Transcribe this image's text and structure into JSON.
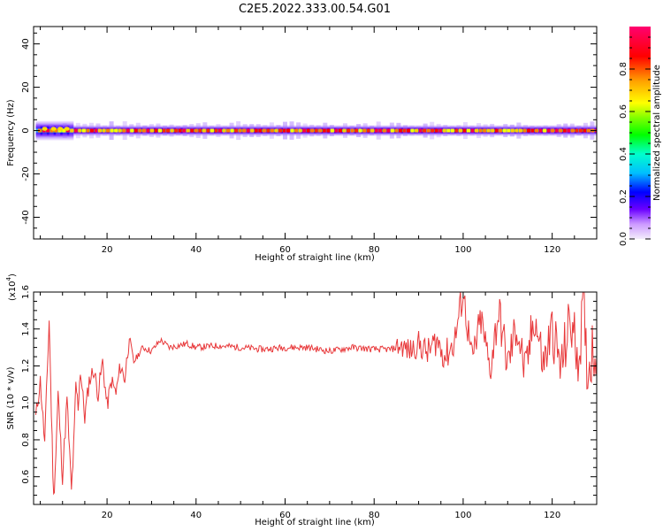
{
  "title": "C2E5.2022.333.00.54.G01",
  "colors": {
    "snr_line": "#e8383a",
    "axis": "#000000",
    "colorbar_stops": [
      "#f0e6fa",
      "#cc99ff",
      "#6a00ff",
      "#0000ff",
      "#00bfff",
      "#00ffcc",
      "#00ff00",
      "#7fff00",
      "#ffff00",
      "#ffa500",
      "#ff0000",
      "#ff0080"
    ]
  },
  "chart_data": [
    {
      "type": "heatmap",
      "title": "",
      "xlabel": "Height of straight line (km)",
      "ylabel": "Frequency (Hz)",
      "xlim": [
        3.5,
        130
      ],
      "ylim": [
        -50,
        48
      ],
      "x_ticks": [
        20,
        40,
        60,
        80,
        100,
        120
      ],
      "y_ticks": [
        -40,
        -20,
        0,
        20,
        40
      ],
      "y_tick_labels": [
        "-40",
        "-20",
        "0",
        "20",
        "40"
      ],
      "colorbar": {
        "label": "Normalized spectral amplitude",
        "range": [
          0,
          1
        ],
        "ticks": [
          0.0,
          0.2,
          0.4,
          0.6,
          0.8
        ],
        "tick_labels": [
          "0.0",
          "0.2",
          "0.4",
          "0.6",
          "0.8"
        ]
      },
      "ridge": {
        "frequency_hz": 0,
        "note_segments": [
          {
            "x_from": 4,
            "x_to": 12.5,
            "halfwidth_hz": 4.5
          },
          {
            "x_from": 12.5,
            "x_to": 130,
            "halfwidth_hz": 2.5
          }
        ]
      },
      "grid": false
    },
    {
      "type": "line",
      "title": "",
      "xlabel": "Height of straight line (km)",
      "ylabel": "SNR (10 * v/v)",
      "y_multiplier_label": "(x10",
      "y_multiplier_exp": "4",
      "xlim": [
        3.5,
        130
      ],
      "ylim": [
        0.45,
        1.6
      ],
      "x_ticks": [
        20,
        40,
        60,
        80,
        100,
        120
      ],
      "y_ticks": [
        0.6,
        0.8,
        1.0,
        1.2,
        1.4,
        1.6
      ],
      "y_tick_labels": [
        "0.6",
        "0.8",
        "1.0",
        "1.2",
        "1.4",
        "1.6"
      ],
      "series": [
        {
          "name": "",
          "x": [
            4,
            5,
            6,
            7,
            7.5,
            8,
            8.5,
            9,
            10,
            11,
            12,
            12.5,
            13,
            13.5,
            14,
            15,
            16,
            17,
            18,
            19,
            20,
            21,
            22,
            23,
            24,
            25,
            26,
            28,
            30,
            32,
            34,
            36,
            38,
            40,
            45,
            50,
            55,
            60,
            65,
            70,
            75,
            80,
            84,
            86,
            88,
            90,
            92,
            94,
            96,
            98,
            100,
            102,
            104,
            106,
            108,
            110,
            112,
            114,
            116,
            118,
            120,
            122,
            124,
            126,
            127,
            128,
            129,
            130
          ],
          "y": [
            0.92,
            1.12,
            0.78,
            1.45,
            0.95,
            0.48,
            0.72,
            1.05,
            0.6,
            1.02,
            0.52,
            0.75,
            1.1,
            0.98,
            1.18,
            0.92,
            1.12,
            1.18,
            1.05,
            1.22,
            0.98,
            1.12,
            1.05,
            1.2,
            1.13,
            1.36,
            1.22,
            1.3,
            1.28,
            1.34,
            1.3,
            1.31,
            1.32,
            1.3,
            1.31,
            1.3,
            1.29,
            1.3,
            1.3,
            1.28,
            1.3,
            1.29,
            1.29,
            1.31,
            1.28,
            1.32,
            1.27,
            1.34,
            1.25,
            1.33,
            1.6,
            1.22,
            1.45,
            1.18,
            1.5,
            1.2,
            1.42,
            1.15,
            1.48,
            1.2,
            1.4,
            1.18,
            1.45,
            1.25,
            1.52,
            1.15,
            1.3,
            1.25
          ]
        }
      ],
      "grid": false
    }
  ]
}
